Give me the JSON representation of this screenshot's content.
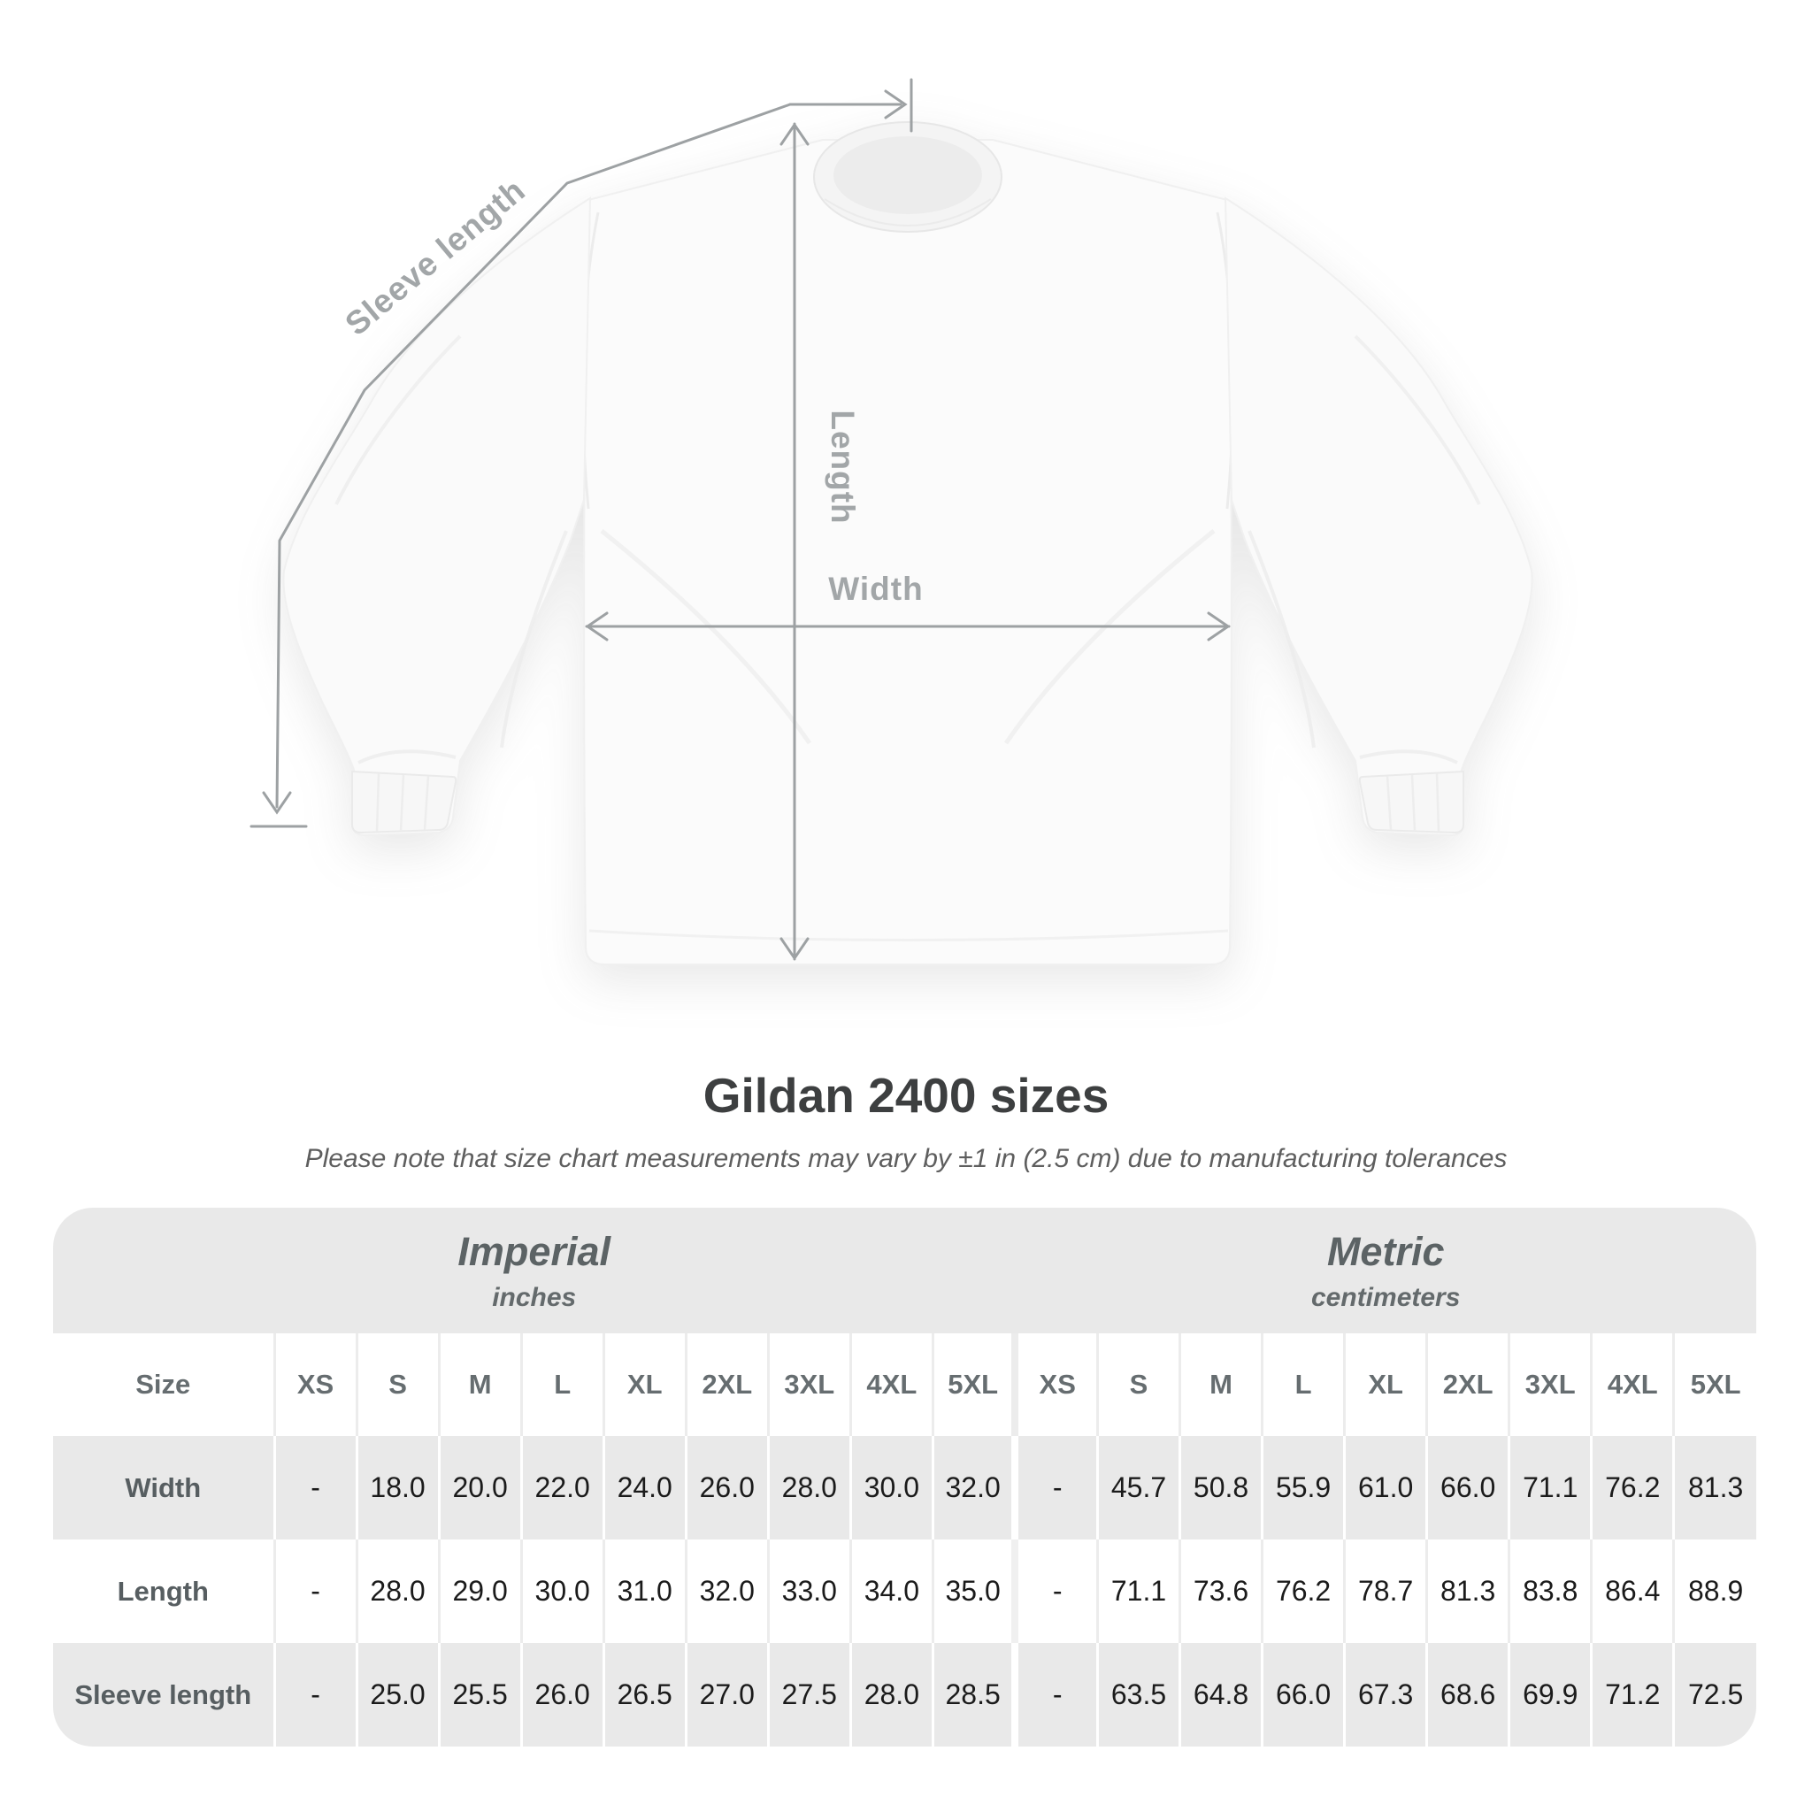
{
  "diagram": {
    "sleeve_length_label": "Sleeve length",
    "length_label": "Length",
    "width_label": "Width"
  },
  "heading": {
    "title": "Gildan 2400 sizes",
    "subtitle": "Please note that size chart measurements may vary by ±1 in (2.5 cm) due to manufacturing tolerances"
  },
  "table": {
    "unit_groups": [
      {
        "label": "Imperial",
        "sub": "inches"
      },
      {
        "label": "Metric",
        "sub": "centimeters"
      }
    ],
    "size_header": "Size",
    "sizes": [
      "XS",
      "S",
      "M",
      "L",
      "XL",
      "2XL",
      "3XL",
      "4XL",
      "5XL"
    ],
    "rows": [
      {
        "label": "Width",
        "imperial": [
          "-",
          "18.0",
          "20.0",
          "22.0",
          "24.0",
          "26.0",
          "28.0",
          "30.0",
          "32.0"
        ],
        "metric": [
          "-",
          "45.7",
          "50.8",
          "55.9",
          "61.0",
          "66.0",
          "71.1",
          "76.2",
          "81.3"
        ]
      },
      {
        "label": "Length",
        "imperial": [
          "-",
          "28.0",
          "29.0",
          "30.0",
          "31.0",
          "32.0",
          "33.0",
          "34.0",
          "35.0"
        ],
        "metric": [
          "-",
          "71.1",
          "73.6",
          "76.2",
          "78.7",
          "81.3",
          "83.8",
          "86.4",
          "88.9"
        ]
      },
      {
        "label": "Sleeve length",
        "imperial": [
          "-",
          "25.0",
          "25.5",
          "26.0",
          "26.5",
          "27.0",
          "27.5",
          "28.0",
          "28.5"
        ],
        "metric": [
          "-",
          "63.5",
          "64.8",
          "66.0",
          "67.3",
          "68.6",
          "69.9",
          "71.2",
          "72.5"
        ]
      }
    ]
  },
  "colors": {
    "table_band_gray": "#e9e9e9",
    "measurement_line_gray": "#9da1a3",
    "title_dark": "#3d3f40",
    "label_slate": "#5d6466",
    "value_dark": "#1b1b1b"
  }
}
